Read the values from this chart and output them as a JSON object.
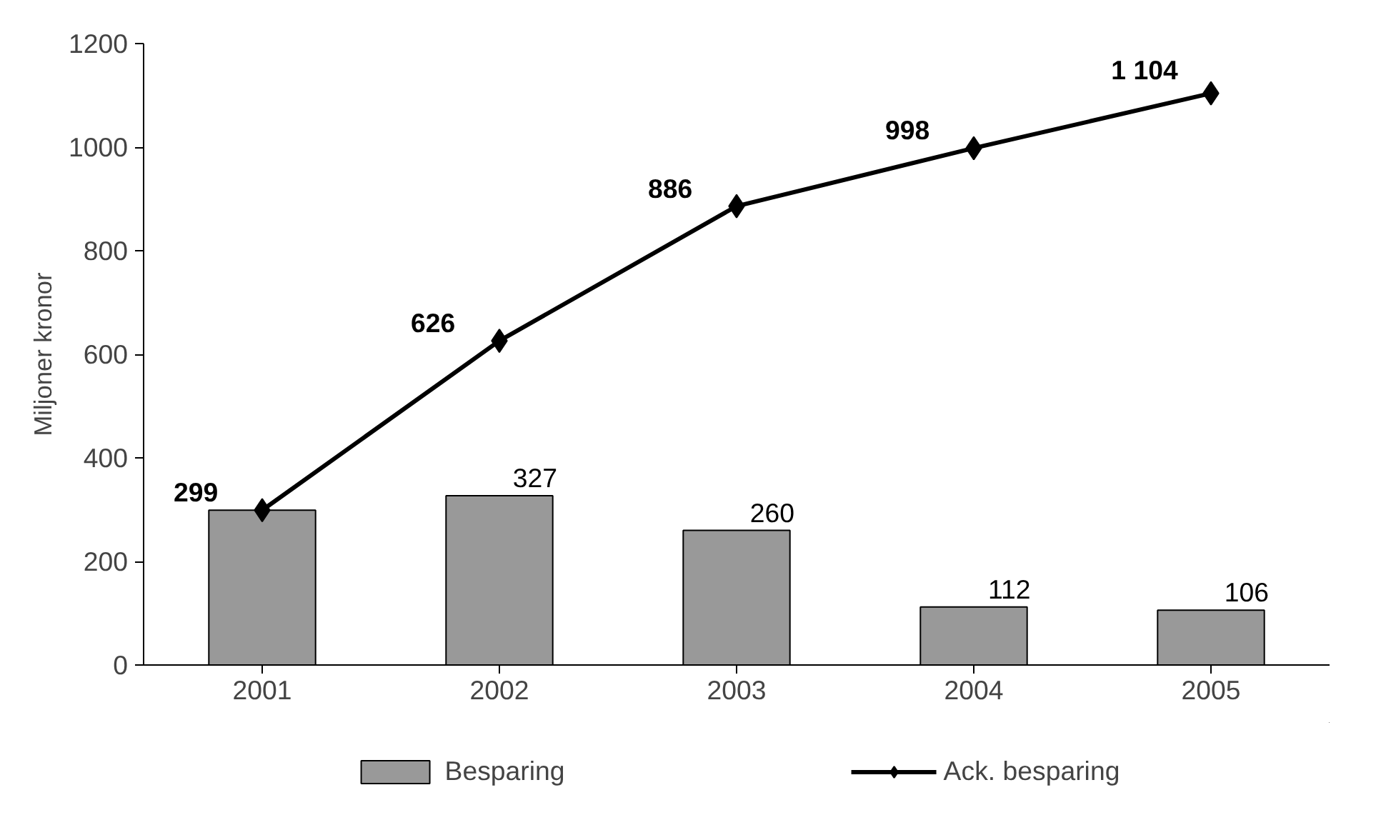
{
  "chart_data": {
    "type": "bar",
    "ylabel": "Miljoner kronor",
    "categories": [
      "2001",
      "2002",
      "2003",
      "2004",
      "2005"
    ],
    "series": [
      {
        "name": "Besparing",
        "color": "#999999",
        "values": [
          299,
          327,
          260,
          112,
          106
        ],
        "value_labels": [
          null,
          "327",
          "260",
          "112",
          "106"
        ]
      },
      {
        "name": "Ack. besparing",
        "type": "line",
        "color": "#000000",
        "marker": "diamond",
        "line_style": "solid",
        "values": [
          299,
          626,
          886,
          998,
          1104
        ],
        "value_labels": [
          "299",
          "626",
          "886",
          "998",
          "1 104"
        ]
      }
    ],
    "ylim": [
      0,
      1200
    ],
    "yticks": [
      0,
      200,
      400,
      600,
      800,
      1000,
      1200
    ],
    "grid": false,
    "legend": "bottom"
  }
}
